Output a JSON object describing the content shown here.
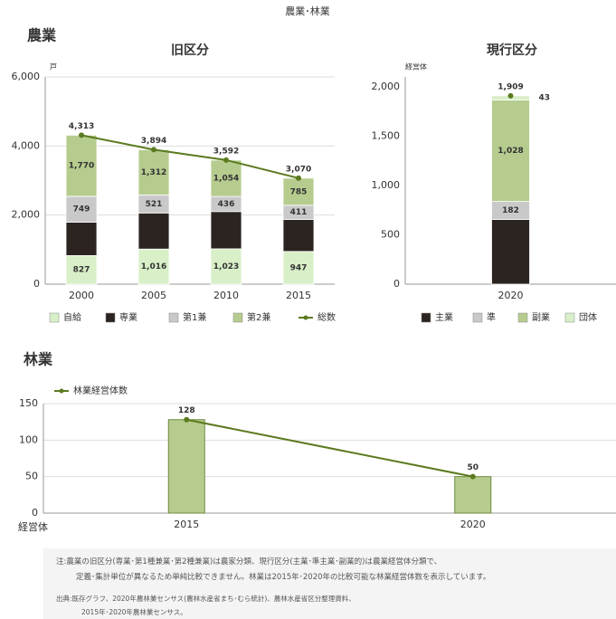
{
  "page_title": "農業･林業",
  "headings": [
    "農業",
    "林業"
  ],
  "notes": [
    "注:農業の旧区分(専業･第1種兼業･第2種兼業)は農家分類、現行区分(主業･準主業･副業的)は農業経営体分類で、",
    "定義･集計単位が異なるため単純比較できません。林業は2015年･2020年の比較可能な林業経営体数を表示しています。"
  ],
  "source": [
    "出典:既存グラフ、2020年農林業センサス(農林水産省まち･むら統計)、農林水産省区分整理資料、",
    "2015年･2020年農林業センサス。"
  ],
  "chart_data": [
    {
      "type": "bar",
      "stacked": true,
      "title": "旧区分",
      "y_unit": "戸",
      "grid": true,
      "categories": [
        "2000",
        "2005",
        "2010",
        "2015"
      ],
      "ylim": [
        0,
        6000
      ],
      "yticks": [
        0,
        {
          "value": 2000,
          "label": "2,000"
        },
        {
          "value": 4000,
          "label": "4,000"
        },
        {
          "value": 6000,
          "label": "6,000"
        }
      ],
      "series": [
        {
          "name": "自給",
          "color": "#d8efc8",
          "values": [
            827,
            1016,
            1023,
            947
          ],
          "value_labels": [
            "827",
            "1,016",
            "1,023",
            "947"
          ]
        },
        {
          "name": "専業",
          "color": "#2b2420",
          "values": [
            967,
            1045,
            1079,
            927
          ]
        },
        {
          "name": "第1兼",
          "color": "#c9c9c9",
          "values": [
            749,
            521,
            436,
            411
          ],
          "value_labels": [
            "749",
            "521",
            "436",
            "411"
          ]
        },
        {
          "name": "第2兼",
          "color": "#b6cc8f",
          "values": [
            1770,
            1312,
            1054,
            785
          ],
          "value_labels": [
            "1,770",
            "1,312",
            "1,054",
            "785"
          ]
        },
        {
          "name": "総数",
          "type": "line",
          "color": "#5b7a1f",
          "values": [
            4313,
            3894,
            3592,
            3070
          ],
          "value_labels": [
            "4,313",
            "3,894",
            "3,592",
            "3,070"
          ]
        }
      ]
    },
    {
      "type": "bar",
      "stacked": true,
      "title": "現行区分",
      "y_unit": "経営体",
      "grid": false,
      "categories": [
        "2020"
      ],
      "ylim": [
        0,
        2100
      ],
      "yticks": [
        0,
        500,
        {
          "value": 1000,
          "label": "1,000"
        },
        {
          "value": 1500,
          "label": "1,500"
        },
        {
          "value": 2000,
          "label": "2,000"
        }
      ],
      "series": [
        {
          "name": "主業",
          "color": "#2b2420",
          "values": [
            656
          ]
        },
        {
          "name": "準",
          "color": "#c9c9c9",
          "values": [
            182
          ],
          "value_labels": [
            "182"
          ]
        },
        {
          "name": "副業",
          "color": "#b6cc8f",
          "values": [
            1028
          ],
          "value_labels": [
            "1,028"
          ]
        },
        {
          "name": "団体",
          "color": "#d8efc8",
          "values": [
            43
          ],
          "value_labels": [
            "43"
          ]
        },
        {
          "type": "line",
          "color": "#5b7a1f",
          "values": [
            1909
          ],
          "value_labels": [
            "1,909"
          ]
        }
      ]
    },
    {
      "type": "bar",
      "stacked": false,
      "y_unit": "経営体",
      "grid": true,
      "categories": [
        "2015",
        "2020"
      ],
      "ylim": [
        0,
        150
      ],
      "yticks": [
        0,
        50,
        100,
        150
      ],
      "series": [
        {
          "name": "林業経営体数",
          "type": "bar_line",
          "color": "#b6cc8f",
          "line_color": "#5b7a1f",
          "values": [
            128,
            50
          ]
        }
      ]
    }
  ]
}
